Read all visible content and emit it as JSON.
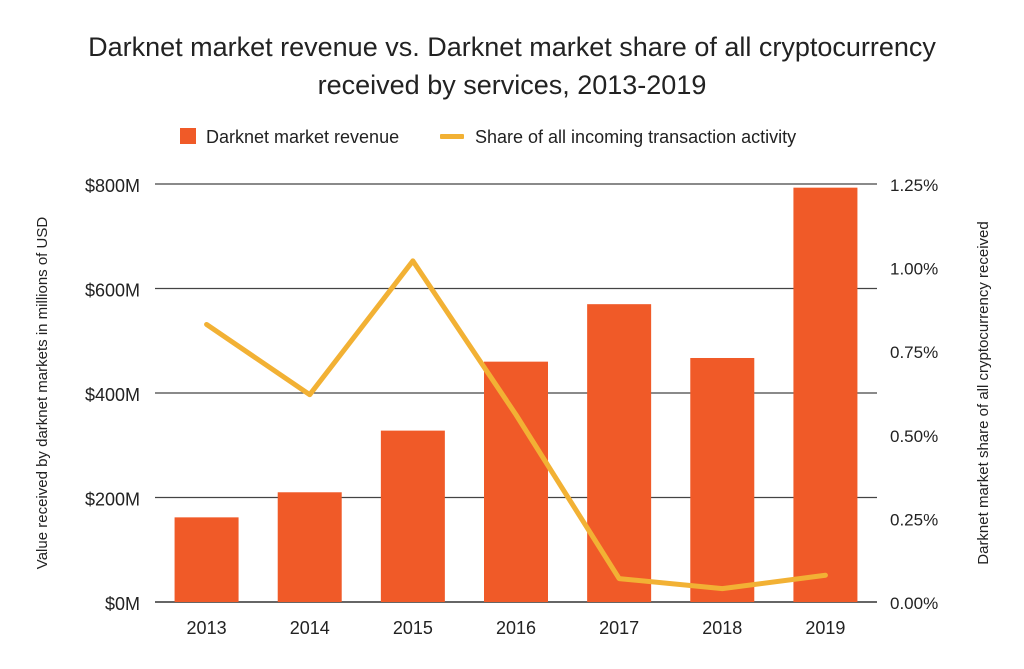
{
  "chart_data": {
    "type": "bar",
    "title_line1": "Darknet market revenue vs. Darknet market share of all cryptocurrency",
    "title_line2": "received by services, 2013-2019",
    "categories": [
      "2013",
      "2014",
      "2015",
      "2016",
      "2017",
      "2018",
      "2019"
    ],
    "series": [
      {
        "name": "Darknet market revenue",
        "type": "bar",
        "axis": "left",
        "color": "#f05a28",
        "values": [
          162,
          210,
          328,
          460,
          570,
          467,
          793
        ]
      },
      {
        "name": "Share of all incoming transaction activity",
        "type": "line",
        "axis": "right",
        "color": "#f2b134",
        "values": [
          0.83,
          0.62,
          1.02,
          0.56,
          0.07,
          0.04,
          0.08
        ]
      }
    ],
    "y_left": {
      "label": "Value received by darknet markets in millions of USD",
      "range": [
        0,
        800
      ],
      "ticks": [
        0,
        200,
        400,
        600,
        800
      ],
      "tick_labels": [
        "$0M",
        "$200M",
        "$400M",
        "$600M",
        "$800M"
      ]
    },
    "y_right": {
      "label": "Darknet market share of all cryptocurrency received",
      "range": [
        0,
        1.25
      ],
      "ticks": [
        0,
        0.25,
        0.5,
        0.75,
        1.0,
        1.25
      ],
      "tick_labels": [
        "0.00%",
        "0.25%",
        "0.50%",
        "0.75%",
        "1.00%",
        "1.25%"
      ]
    },
    "grid": true,
    "legend_position": "top"
  }
}
